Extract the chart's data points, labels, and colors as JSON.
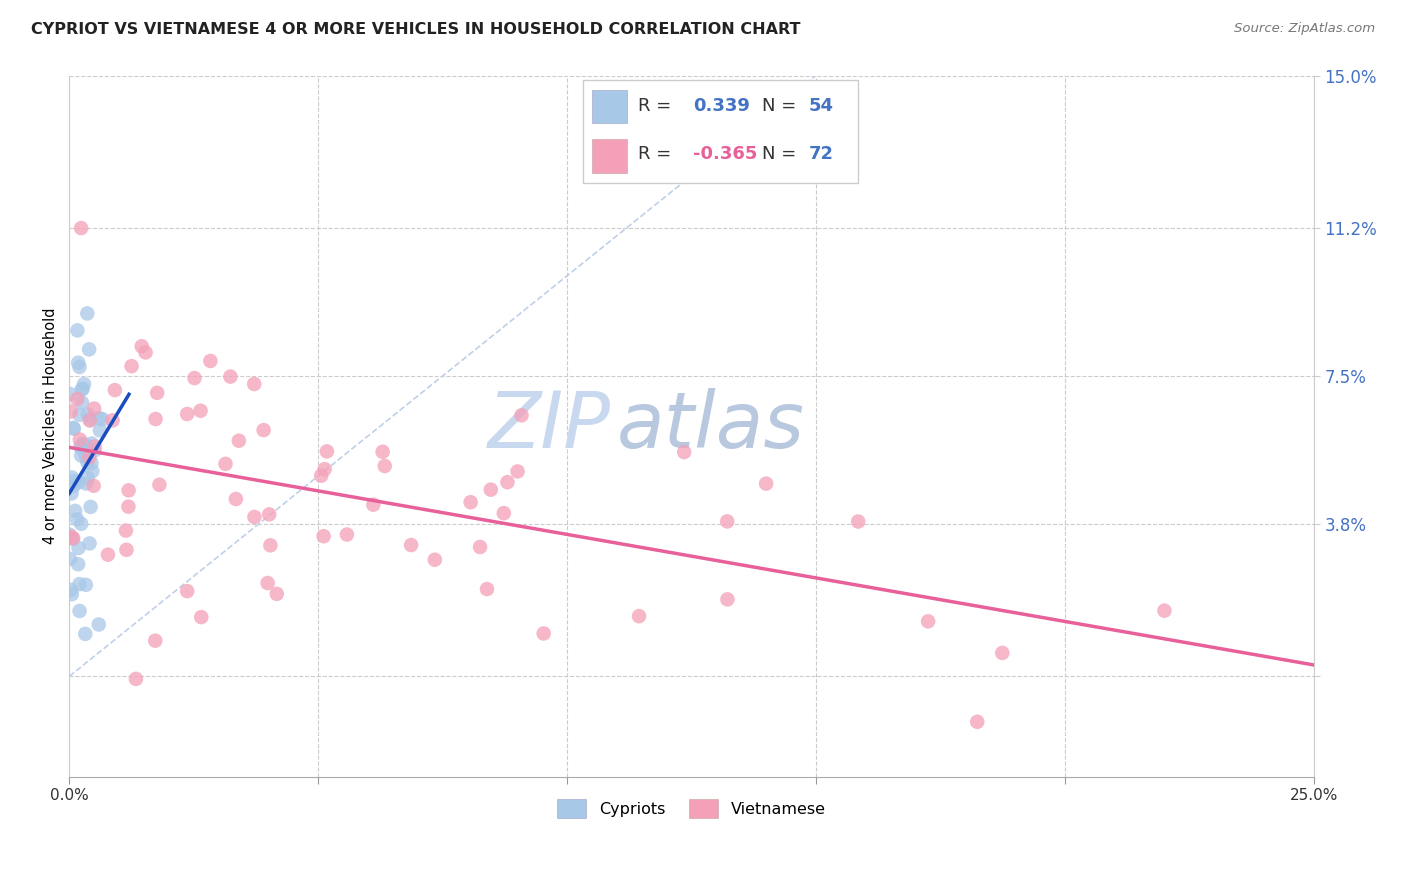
{
  "title": "CYPRIOT VS VIETNAMESE 4 OR MORE VEHICLES IN HOUSEHOLD CORRELATION CHART",
  "source": "Source: ZipAtlas.com",
  "ylabel_label": "4 or more Vehicles in Household",
  "xmin": 0.0,
  "xmax": 0.25,
  "ymin": -0.025,
  "ymax": 0.15,
  "cypriot_R": 0.339,
  "cypriot_N": 54,
  "vietnamese_R": -0.365,
  "vietnamese_N": 72,
  "cypriot_color": "#a8c8e8",
  "vietnamese_color": "#f4a0b8",
  "cypriot_line_color": "#1a4dbf",
  "vietnamese_line_color": "#e8609a",
  "diagonal_color": "#c0d0e8",
  "watermark_zip_color": "#c8d8ee",
  "watermark_atlas_color": "#b8c8de",
  "grid_color": "#cccccc",
  "ytick_color": "#4472c4",
  "xtick_color": "#333333",
  "ytick_vals": [
    0.0,
    0.038,
    0.075,
    0.112,
    0.15
  ],
  "ytick_labels": [
    "",
    "3.8%",
    "7.5%",
    "11.2%",
    "15.0%"
  ],
  "xtick_vals": [
    0.0,
    0.05,
    0.1,
    0.15,
    0.2,
    0.25
  ],
  "xtick_labels": [
    "0.0%",
    "",
    "",
    "",
    "",
    "25.0%"
  ],
  "legend_R1": "0.339",
  "legend_N1": "54",
  "legend_R2": "-0.365",
  "legend_N2": "72"
}
